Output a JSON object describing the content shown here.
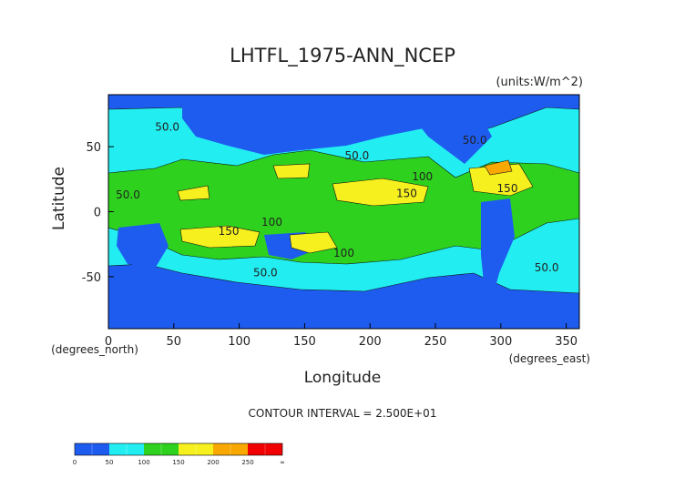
{
  "chart_data": {
    "type": "contour",
    "title": "LHTFL_1975-ANN_NCEP",
    "units": "(units:W/m^2)",
    "xlabel": "Longitude",
    "ylabel": "Latitude",
    "x_unit": "(degrees_east)",
    "y_unit": "(degrees_north)",
    "xlim": [
      0,
      360
    ],
    "ylim": [
      -90,
      90
    ],
    "xticks": [
      0,
      50,
      100,
      150,
      200,
      250,
      300,
      350
    ],
    "yticks": [
      -50,
      0,
      50
    ],
    "note": "CONTOUR INTERVAL = 2.500E+01",
    "contour_labels": [
      {
        "value": 50,
        "label": "50.0"
      },
      {
        "value": 50,
        "label": "50.0"
      },
      {
        "value": 50,
        "label": "50.0"
      },
      {
        "value": 100,
        "label": "100"
      },
      {
        "value": 150,
        "label": "150"
      },
      {
        "value": 150,
        "label": "150"
      },
      {
        "value": 50,
        "label": "50.0"
      },
      {
        "value": 100,
        "label": "100"
      },
      {
        "value": 150,
        "label": "150"
      },
      {
        "value": 100,
        "label": "100"
      },
      {
        "value": 50,
        "label": "50.0"
      },
      {
        "value": 50,
        "label": "50.0"
      }
    ],
    "colorbar": {
      "ticks": [
        0,
        50,
        100,
        150,
        200,
        250
      ],
      "top_label": "∞",
      "colors": [
        "#1e5cf0",
        "#22eef2",
        "#2ed21e",
        "#f6f01e",
        "#f8a800",
        "#f00000"
      ]
    }
  }
}
